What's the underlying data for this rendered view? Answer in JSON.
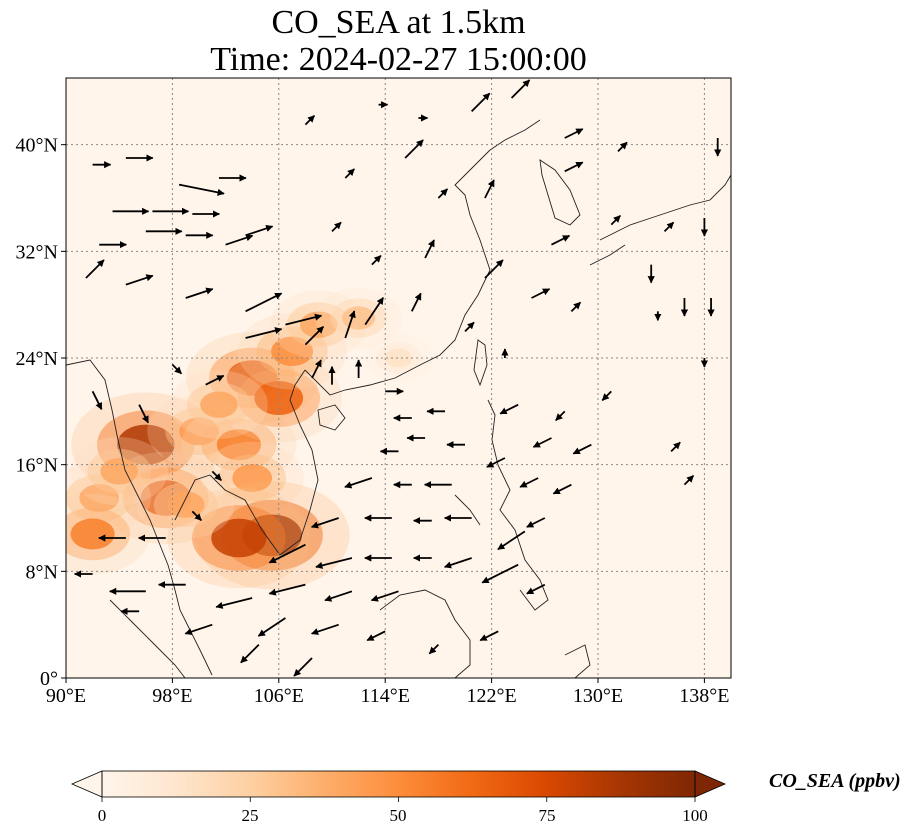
{
  "title": {
    "line1": "CO_SEA at 1.5km",
    "line2": "Time: 2024-02-27 15:00:00"
  },
  "map": {
    "extent_lon": [
      90,
      140
    ],
    "extent_lat": [
      0,
      45
    ],
    "lon_ticks": [
      {
        "value": 90,
        "label": "90°E"
      },
      {
        "value": 98,
        "label": "98°E"
      },
      {
        "value": 106,
        "label": "106°E"
      },
      {
        "value": 114,
        "label": "114°E"
      },
      {
        "value": 122,
        "label": "122°E"
      },
      {
        "value": 130,
        "label": "130°E"
      },
      {
        "value": 138,
        "label": "138°E"
      }
    ],
    "lat_ticks": [
      {
        "value": 0,
        "label": "0°"
      },
      {
        "value": 8,
        "label": "8°N"
      },
      {
        "value": 16,
        "label": "16°N"
      },
      {
        "value": 24,
        "label": "24°N"
      },
      {
        "value": 32,
        "label": "32°N"
      },
      {
        "value": 40,
        "label": "40°N"
      }
    ],
    "gridlines": true,
    "background_color": "#fff5eb",
    "plumes": [
      {
        "lon": 96.0,
        "lat": 17.5,
        "value": 85
      },
      {
        "lon": 97.5,
        "lat": 13.5,
        "value": 70
      },
      {
        "lon": 92.5,
        "lat": 13.5,
        "value": 45
      },
      {
        "lon": 92.0,
        "lat": 10.8,
        "value": 55
      },
      {
        "lon": 94.0,
        "lat": 15.5,
        "value": 40
      },
      {
        "lon": 100.0,
        "lat": 18.5,
        "value": 45
      },
      {
        "lon": 103.0,
        "lat": 17.5,
        "value": 55
      },
      {
        "lon": 104.0,
        "lat": 15.0,
        "value": 45
      },
      {
        "lon": 105.5,
        "lat": 10.7,
        "value": 90
      },
      {
        "lon": 103.0,
        "lat": 10.5,
        "value": 80
      },
      {
        "lon": 104.0,
        "lat": 22.5,
        "value": 70
      },
      {
        "lon": 106.0,
        "lat": 21.0,
        "value": 65
      },
      {
        "lon": 107.0,
        "lat": 24.5,
        "value": 50
      },
      {
        "lon": 109.0,
        "lat": 26.5,
        "value": 40
      },
      {
        "lon": 112.0,
        "lat": 27.0,
        "value": 30
      },
      {
        "lon": 101.5,
        "lat": 20.5,
        "value": 40
      },
      {
        "lon": 99.0,
        "lat": 13.0,
        "value": 40
      },
      {
        "lon": 115.0,
        "lat": 24.0,
        "value": 15
      }
    ],
    "wind_vectors": [
      {
        "lon": 92,
        "lat": 38.5,
        "u": 2,
        "v": 0
      },
      {
        "lon": 94.5,
        "lat": 39.0,
        "u": 3,
        "v": 0
      },
      {
        "lon": 98.5,
        "lat": 37.0,
        "u": 5,
        "v": -1
      },
      {
        "lon": 101.5,
        "lat": 37.5,
        "u": 3,
        "v": 0
      },
      {
        "lon": 93.5,
        "lat": 35.0,
        "u": 4,
        "v": 0
      },
      {
        "lon": 96.5,
        "lat": 35.0,
        "u": 4,
        "v": 0
      },
      {
        "lon": 99.5,
        "lat": 34.8,
        "u": 3,
        "v": 0
      },
      {
        "lon": 92.5,
        "lat": 32.5,
        "u": 3,
        "v": 0
      },
      {
        "lon": 96.0,
        "lat": 33.5,
        "u": 4,
        "v": 0
      },
      {
        "lon": 99.0,
        "lat": 33.2,
        "u": 3,
        "v": 0
      },
      {
        "lon": 103.5,
        "lat": 33.2,
        "u": 3,
        "v": 1
      },
      {
        "lon": 102.0,
        "lat": 32.5,
        "u": 3,
        "v": 1
      },
      {
        "lon": 91.5,
        "lat": 30.0,
        "u": 2,
        "v": 2
      },
      {
        "lon": 94.5,
        "lat": 29.5,
        "u": 3,
        "v": 1
      },
      {
        "lon": 99.0,
        "lat": 28.5,
        "u": 3,
        "v": 1
      },
      {
        "lon": 103.5,
        "lat": 27.5,
        "u": 4,
        "v": 2
      },
      {
        "lon": 103.5,
        "lat": 25.5,
        "u": 4,
        "v": 1
      },
      {
        "lon": 106.5,
        "lat": 26.5,
        "u": 4,
        "v": 1
      },
      {
        "lon": 108.0,
        "lat": 25.0,
        "u": 2,
        "v": 2
      },
      {
        "lon": 111.0,
        "lat": 25.5,
        "u": 1,
        "v": 3
      },
      {
        "lon": 112.5,
        "lat": 26.5,
        "u": 2,
        "v": 3
      },
      {
        "lon": 108.5,
        "lat": 22.5,
        "u": 1,
        "v": 2
      },
      {
        "lon": 110.0,
        "lat": 22.0,
        "u": 0,
        "v": 2
      },
      {
        "lon": 112.0,
        "lat": 22.5,
        "u": 0,
        "v": 2
      },
      {
        "lon": 114.0,
        "lat": 21.5,
        "u": 2,
        "v": 0
      },
      {
        "lon": 116.0,
        "lat": 19.5,
        "u": -2,
        "v": 0
      },
      {
        "lon": 118.5,
        "lat": 20.0,
        "u": -2,
        "v": 0
      },
      {
        "lon": 117.0,
        "lat": 18.0,
        "u": -2,
        "v": 0
      },
      {
        "lon": 115.0,
        "lat": 17.0,
        "u": -2,
        "v": 0
      },
      {
        "lon": 120.0,
        "lat": 17.5,
        "u": -2,
        "v": 0
      },
      {
        "lon": 116.0,
        "lat": 14.5,
        "u": -2,
        "v": 0
      },
      {
        "lon": 119.0,
        "lat": 14.5,
        "u": -3,
        "v": 0
      },
      {
        "lon": 113.0,
        "lat": 15.0,
        "u": -3,
        "v": -1
      },
      {
        "lon": 114.5,
        "lat": 12.0,
        "u": -3,
        "v": 0
      },
      {
        "lon": 117.5,
        "lat": 11.8,
        "u": -2,
        "v": 0
      },
      {
        "lon": 120.5,
        "lat": 12.0,
        "u": -3,
        "v": 0
      },
      {
        "lon": 110.5,
        "lat": 12.0,
        "u": -3,
        "v": -1
      },
      {
        "lon": 108.0,
        "lat": 10.0,
        "u": -4,
        "v": -2
      },
      {
        "lon": 111.5,
        "lat": 9.0,
        "u": -4,
        "v": -1
      },
      {
        "lon": 114.5,
        "lat": 9.0,
        "u": -3,
        "v": 0
      },
      {
        "lon": 117.5,
        "lat": 9.0,
        "u": -2,
        "v": 0
      },
      {
        "lon": 108.0,
        "lat": 7.0,
        "u": -4,
        "v": -1
      },
      {
        "lon": 111.5,
        "lat": 6.5,
        "u": -3,
        "v": -1
      },
      {
        "lon": 115.0,
        "lat": 6.5,
        "u": -3,
        "v": -1
      },
      {
        "lon": 104.0,
        "lat": 6.0,
        "u": -4,
        "v": -1
      },
      {
        "lon": 106.5,
        "lat": 4.5,
        "u": -3,
        "v": -2
      },
      {
        "lon": 110.5,
        "lat": 4.0,
        "u": -3,
        "v": -1
      },
      {
        "lon": 114.0,
        "lat": 3.5,
        "u": -2,
        "v": -1
      },
      {
        "lon": 101.0,
        "lat": 4.0,
        "u": -3,
        "v": -1
      },
      {
        "lon": 104.5,
        "lat": 2.5,
        "u": -2,
        "v": -2
      },
      {
        "lon": 108.5,
        "lat": 1.5,
        "u": -2,
        "v": -2
      },
      {
        "lon": 96.0,
        "lat": 6.5,
        "u": -4,
        "v": 0
      },
      {
        "lon": 99.0,
        "lat": 7.0,
        "u": -3,
        "v": 0
      },
      {
        "lon": 92.0,
        "lat": 7.8,
        "u": -2,
        "v": 0
      },
      {
        "lon": 94.5,
        "lat": 10.5,
        "u": -3,
        "v": 0
      },
      {
        "lon": 97.5,
        "lat": 10.5,
        "u": -3,
        "v": 0
      },
      {
        "lon": 95.5,
        "lat": 5.0,
        "u": -2,
        "v": 0
      },
      {
        "lon": 120.5,
        "lat": 9.0,
        "u": -3,
        "v": -1
      },
      {
        "lon": 124.5,
        "lat": 11.0,
        "u": -3,
        "v": -2
      },
      {
        "lon": 124.0,
        "lat": 8.5,
        "u": -4,
        "v": -2
      },
      {
        "lon": 126.0,
        "lat": 12.0,
        "u": -2,
        "v": -1
      },
      {
        "lon": 123.0,
        "lat": 16.5,
        "u": -2,
        "v": -1
      },
      {
        "lon": 125.5,
        "lat": 15.0,
        "u": -2,
        "v": -1
      },
      {
        "lon": 128.0,
        "lat": 14.5,
        "u": -2,
        "v": -1
      },
      {
        "lon": 126.5,
        "lat": 18.0,
        "u": -2,
        "v": -1
      },
      {
        "lon": 129.5,
        "lat": 17.5,
        "u": -2,
        "v": -1
      },
      {
        "lon": 124.0,
        "lat": 20.5,
        "u": -2,
        "v": -1
      },
      {
        "lon": 127.5,
        "lat": 20.0,
        "u": -1,
        "v": -1
      },
      {
        "lon": 131.0,
        "lat": 21.5,
        "u": -1,
        "v": -1
      },
      {
        "lon": 122.5,
        "lat": 3.5,
        "u": -2,
        "v": -1
      },
      {
        "lon": 126.0,
        "lat": 7.0,
        "u": -2,
        "v": -1
      },
      {
        "lon": 118.0,
        "lat": 2.5,
        "u": -1,
        "v": -1
      },
      {
        "lon": 115.5,
        "lat": 39.0,
        "u": 2,
        "v": 2
      },
      {
        "lon": 120.5,
        "lat": 42.5,
        "u": 2,
        "v": 2
      },
      {
        "lon": 123.5,
        "lat": 43.5,
        "u": 2,
        "v": 2
      },
      {
        "lon": 127.5,
        "lat": 40.5,
        "u": 2,
        "v": 1
      },
      {
        "lon": 127.5,
        "lat": 38.0,
        "u": 2,
        "v": 1
      },
      {
        "lon": 131.5,
        "lat": 39.5,
        "u": 1,
        "v": 1
      },
      {
        "lon": 126.5,
        "lat": 32.5,
        "u": 2,
        "v": 1
      },
      {
        "lon": 131.0,
        "lat": 34.0,
        "u": 1,
        "v": 1
      },
      {
        "lon": 135.0,
        "lat": 33.5,
        "u": 1,
        "v": 1
      },
      {
        "lon": 134.5,
        "lat": 27.5,
        "u": 0,
        "v": -1
      },
      {
        "lon": 136.5,
        "lat": 28.5,
        "u": 0,
        "v": -2
      },
      {
        "lon": 134.0,
        "lat": 31.0,
        "u": 0,
        "v": -2
      },
      {
        "lon": 138.5,
        "lat": 28.5,
        "u": 0,
        "v": -2
      },
      {
        "lon": 138.0,
        "lat": 34.5,
        "u": 0,
        "v": -2
      },
      {
        "lon": 139.0,
        "lat": 40.5,
        "u": 0,
        "v": -2
      },
      {
        "lon": 138.0,
        "lat": 24.0,
        "u": 0,
        "v": -1
      },
      {
        "lon": 135.5,
        "lat": 17.0,
        "u": 1,
        "v": 1
      },
      {
        "lon": 136.5,
        "lat": 14.5,
        "u": 1,
        "v": 1
      },
      {
        "lon": 118.0,
        "lat": 36.0,
        "u": 1,
        "v": 1
      },
      {
        "lon": 121.5,
        "lat": 36.0,
        "u": 1,
        "v": 2
      },
      {
        "lon": 117.0,
        "lat": 31.5,
        "u": 1,
        "v": 2
      },
      {
        "lon": 121.5,
        "lat": 30.0,
        "u": 2,
        "v": 2
      },
      {
        "lon": 125.0,
        "lat": 28.5,
        "u": 2,
        "v": 1
      },
      {
        "lon": 128.0,
        "lat": 27.5,
        "u": 1,
        "v": 1
      },
      {
        "lon": 120.0,
        "lat": 26.0,
        "u": 1,
        "v": 1
      },
      {
        "lon": 123.0,
        "lat": 24.0,
        "u": 0,
        "v": 1
      },
      {
        "lon": 116.0,
        "lat": 27.5,
        "u": 1,
        "v": 2
      },
      {
        "lon": 110.0,
        "lat": 33.5,
        "u": 1,
        "v": 1
      },
      {
        "lon": 113.0,
        "lat": 31.0,
        "u": 1,
        "v": 1
      },
      {
        "lon": 111.0,
        "lat": 37.5,
        "u": 1,
        "v": 1
      },
      {
        "lon": 108.0,
        "lat": 41.5,
        "u": 1,
        "v": 1
      },
      {
        "lon": 113.5,
        "lat": 43.0,
        "u": 1,
        "v": 0
      },
      {
        "lon": 116.5,
        "lat": 42.0,
        "u": 1,
        "v": 0
      },
      {
        "lon": 95.5,
        "lat": 20.5,
        "u": 1,
        "v": -2
      },
      {
        "lon": 92.0,
        "lat": 21.5,
        "u": 1,
        "v": -2
      },
      {
        "lon": 98.0,
        "lat": 23.5,
        "u": 1,
        "v": -1
      },
      {
        "lon": 100.5,
        "lat": 22.0,
        "u": 2,
        "v": 1
      },
      {
        "lon": 101.0,
        "lat": 15.5,
        "u": 1,
        "v": -1
      },
      {
        "lon": 99.5,
        "lat": 12.5,
        "u": 1,
        "v": -1
      }
    ]
  },
  "colorbar": {
    "title": "CO_SEA (ppbv)",
    "min": 0,
    "max": 100,
    "extend": "both",
    "colormap": "OrRd",
    "stops": [
      "#fff5eb",
      "#fee6ce",
      "#fdd0a2",
      "#fdae6b",
      "#fd8d3c",
      "#f16913",
      "#d94801",
      "#a63603",
      "#7f2704"
    ],
    "tick_labels": [
      "0",
      "25",
      "50",
      "75",
      "100"
    ]
  }
}
